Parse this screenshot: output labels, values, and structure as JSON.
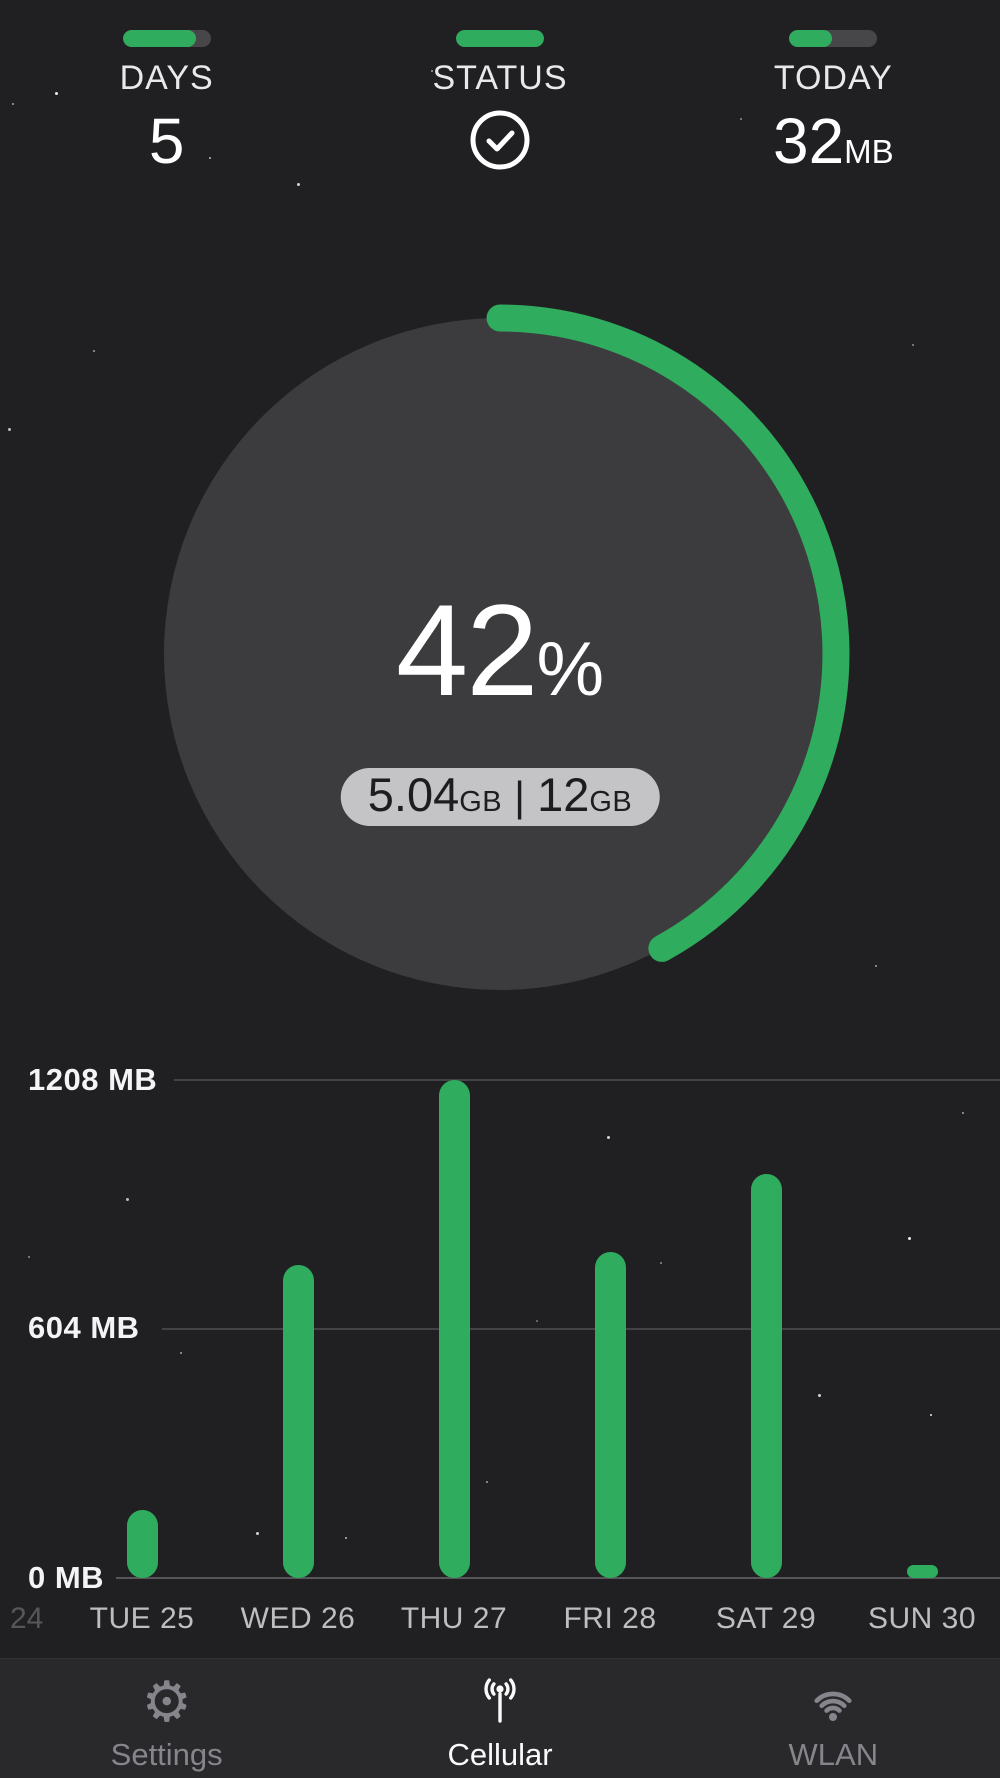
{
  "header": {
    "stats": [
      {
        "label": "DAYS",
        "value": "5",
        "progress_pct": 83
      },
      {
        "label": "STATUS",
        "icon": "check-circle-icon",
        "progress_pct": 100
      },
      {
        "label": "TODAY",
        "value": "32",
        "unit": "MB",
        "progress_pct": 49
      }
    ]
  },
  "gauge": {
    "percent": "42",
    "percent_symbol": "%",
    "used_value": "5.04",
    "used_unit": "GB",
    "separator": "|",
    "total_value": "12",
    "total_unit": "GB"
  },
  "chart_data": [
    {
      "type": "donut",
      "percent": 42,
      "used_gb": 5.04,
      "total_gb": 12,
      "center_label": "42%",
      "caption": "5.04GB | 12GB",
      "arc_color": "#2fac5e",
      "disc_color": "#3c3c3e"
    },
    {
      "type": "bar",
      "categories": [
        "TUE 25",
        "WED 26",
        "THU 27",
        "FRI 28",
        "SAT 29",
        "SUN 30"
      ],
      "values": [
        165,
        760,
        1208,
        790,
        980,
        32
      ],
      "edge_label": "24",
      "unit": "MB",
      "y_tick_labels": [
        "1208 MB",
        "604 MB",
        "0 MB"
      ],
      "gridlines_mb": [
        1208,
        604,
        0
      ],
      "ylim": [
        0,
        1208
      ],
      "bar_color": "#2fac5e",
      "legend": "none",
      "grid": "horizontal"
    }
  ],
  "tabbar": {
    "items": [
      {
        "label": "Settings",
        "icon": "gear-icon",
        "active": false
      },
      {
        "label": "Cellular",
        "icon": "cellular-icon",
        "active": true
      },
      {
        "label": "WLAN",
        "icon": "wifi-icon",
        "active": false
      }
    ]
  },
  "colors": {
    "accent_green": "#2fac5e",
    "background": "#202022",
    "gauge_disc": "#3c3c3e",
    "pill_background": "#c4c4c6",
    "pill_text": "#1d1d1f",
    "tabbar_background": "#29292c",
    "inactive_gray": "#85858b",
    "track_gray": "#47474a"
  }
}
